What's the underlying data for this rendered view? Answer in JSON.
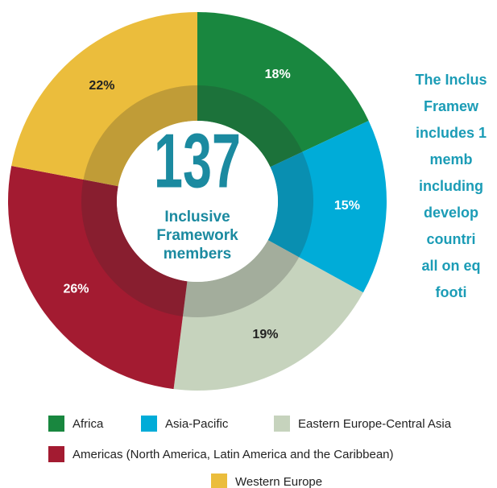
{
  "chart_data": {
    "type": "donut",
    "categories": [
      "Africa",
      "Asia-Pacific",
      "Eastern Europe-Central Asia",
      "Americas (North America, Latin America and the Caribbean)",
      "Western Europe"
    ],
    "values": [
      18,
      15,
      19,
      26,
      22
    ],
    "value_labels": [
      "18%",
      "15%",
      "19%",
      "26%",
      "22%"
    ],
    "colors": [
      "#19873f",
      "#00acd8",
      "#c6d3bd",
      "#a31b31",
      "#ebbd3c"
    ],
    "center_value": 137,
    "center_label": [
      "Inclusive",
      "Framework",
      "members"
    ],
    "annotation": [
      "The Inclus",
      "Framew",
      "includes 1",
      "memb",
      "including",
      "develop",
      "countri",
      "all on eq",
      "footi"
    ]
  }
}
